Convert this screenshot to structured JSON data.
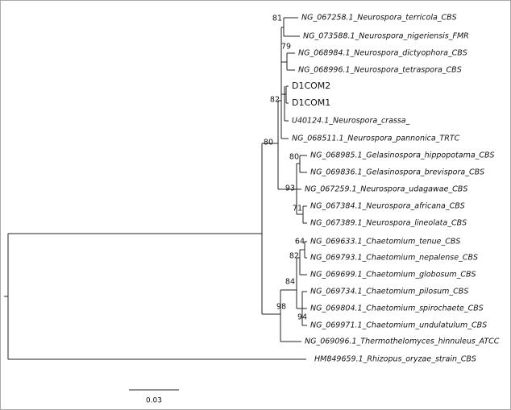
{
  "leaves": [
    {
      "label": "NG_067258.1_Neurospora_terricola_CBS"
    },
    {
      "label": "NG_073588.1_Neurospora_nigeriensis_FMR"
    },
    {
      "label": "NG_068984.1_Neurospora_dictyophora_CBS"
    },
    {
      "label": "NG_068996.1_Neurospora_tetraspora_CBS"
    },
    {
      "label": "D1COM2"
    },
    {
      "label": "D1COM1"
    },
    {
      "label": "U40124.1_Neurospora_crassa_"
    },
    {
      "label": "NG_068511.1_Neurospora_pannonica_TRTC"
    },
    {
      "label": "NG_068985.1_Gelasinospora_hippopotama_CBS"
    },
    {
      "label": "NG_069836.1_Gelasinospora_brevispora_CBS"
    },
    {
      "label": "NG_067259.1_Neurospora_udagawae_CBS"
    },
    {
      "label": "NG_067384.1_Neurospora_africana_CBS"
    },
    {
      "label": "NG_067389.1_Neurospora_lineolata_CBS"
    },
    {
      "label": "NG_069633.1_Chaetomium_tenue_CBS"
    },
    {
      "label": "NG_069793.1_Chaetomium_nepalense_CBS"
    },
    {
      "label": "NG_069699.1_Chaetomium_globosum_CBS"
    },
    {
      "label": "NG_069734.1_Chaetomium_pilosum_CBS"
    },
    {
      "label": "NG_069804.1_Chaetomium_spirochaete_CBS"
    },
    {
      "label": "NG_069971.1_Chaetomium_undulatulum_CBS"
    },
    {
      "label": "NG_069096.1_Thermothelomyces_hinnuleus_ATCC"
    },
    {
      "label": "HM849659.1_Rhizopus_oryzae_strain_CBS"
    }
  ],
  "bootstrap": [
    81,
    79,
    82,
    80,
    80,
    93,
    71,
    64,
    82,
    84,
    98,
    94
  ],
  "scale_bar": {
    "label": "0.03"
  }
}
